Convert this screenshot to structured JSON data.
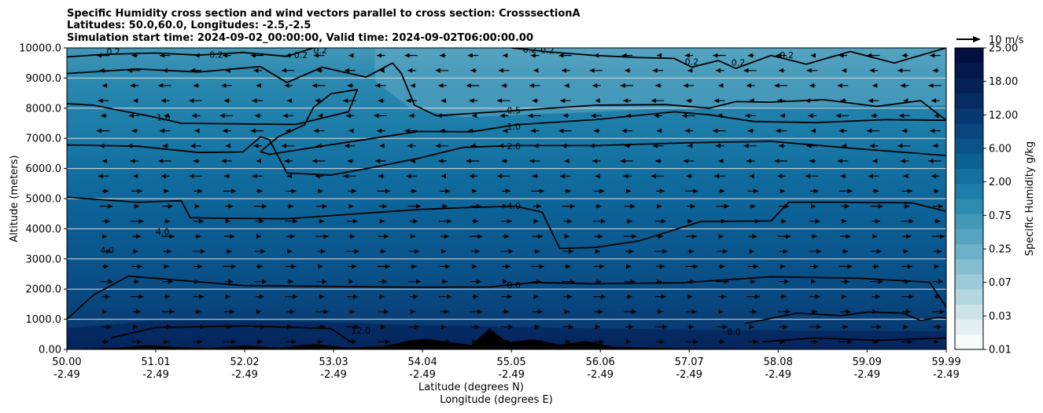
{
  "chart_data": {
    "type": "heatmap",
    "title_lines": [
      "Specific Humidity cross section and wind vectors parallel to cross section: CrosssectionA",
      "Latitudes: 50.0,60.0, Longitudes: -2.5,-2.5",
      "Simulation start time: 2024-09-02_00:00:00, Valid time: 2024-09-02T06:00:00.00"
    ],
    "xlabel_lines": [
      "Latitude (degrees N)",
      "Longitude (degrees E)"
    ],
    "ylabel": "Altitude (meters)",
    "xlim": [
      50.0,
      59.99
    ],
    "ylim": [
      0,
      10000
    ],
    "x_ticks": [
      {
        "lat": "50.00",
        "lon": "-2.49",
        "value": 50.0
      },
      {
        "lat": "51.01",
        "lon": "-2.49",
        "value": 51.01
      },
      {
        "lat": "52.02",
        "lon": "-2.49",
        "value": 52.02
      },
      {
        "lat": "53.03",
        "lon": "-2.49",
        "value": 53.03
      },
      {
        "lat": "54.04",
        "lon": "-2.49",
        "value": 54.04
      },
      {
        "lat": "55.05",
        "lon": "-2.49",
        "value": 55.05
      },
      {
        "lat": "56.06",
        "lon": "-2.49",
        "value": 56.06
      },
      {
        "lat": "57.07",
        "lon": "-2.49",
        "value": 57.07
      },
      {
        "lat": "58.08",
        "lon": "-2.49",
        "value": 58.08
      },
      {
        "lat": "59.09",
        "lon": "-2.49",
        "value": 59.09
      },
      {
        "lat": "59.99",
        "lon": "-2.49",
        "value": 59.99
      }
    ],
    "y_ticks": [
      {
        "label": "0.00",
        "value": 0
      },
      {
        "label": "1000.0",
        "value": 1000
      },
      {
        "label": "2000.0",
        "value": 2000
      },
      {
        "label": "3000.0",
        "value": 3000
      },
      {
        "label": "4000.0",
        "value": 4000
      },
      {
        "label": "5000.0",
        "value": 5000
      },
      {
        "label": "6000.0",
        "value": 6000
      },
      {
        "label": "7000.0",
        "value": 7000
      },
      {
        "label": "8000.0",
        "value": 8000
      },
      {
        "label": "9000.0",
        "value": 9000
      },
      {
        "label": "10000.0",
        "value": 10000
      }
    ],
    "grid": "horizontal",
    "colorbar": {
      "label": "Specific Humidity g/kg",
      "ticks": [
        "0.01",
        "0.03",
        "0.07",
        "0.25",
        "0.75",
        "2.00",
        "6.00",
        "12.00",
        "18.00",
        "25.00"
      ],
      "colors": [
        "#f7fbfc",
        "#e3eff3",
        "#cde3ea",
        "#b4d6e1",
        "#9ccad9",
        "#84bed1",
        "#6cb1c9",
        "#56a4c0",
        "#4398b8",
        "#2e8bb0",
        "#1d7eaa",
        "#126fa0",
        "#0b6196",
        "#09538a",
        "#08467d",
        "#073870",
        "#062b63",
        "#052057",
        "#04174c",
        "#030f40"
      ]
    },
    "quiver_key": {
      "label": "10 m/s",
      "value": 10
    },
    "contour_labels": [
      {
        "text": "0.2",
        "x": 50.45,
        "y": 9880
      },
      {
        "text": "0.2",
        "x": 51.62,
        "y": 9780
      },
      {
        "text": "0.2",
        "x": 52.58,
        "y": 9760
      },
      {
        "text": "0.2",
        "x": 52.8,
        "y": 9920
      },
      {
        "text": "0.2",
        "x": 55.18,
        "y": 9950
      },
      {
        "text": "0.2",
        "x": 55.38,
        "y": 9920
      },
      {
        "text": "0.2",
        "x": 57.02,
        "y": 9540
      },
      {
        "text": "0.2",
        "x": 57.55,
        "y": 9520
      },
      {
        "text": "0.2",
        "x": 58.1,
        "y": 9760
      },
      {
        "text": "1.0",
        "x": 51.02,
        "y": 7700
      },
      {
        "text": "0.5",
        "x": 55.0,
        "y": 7930
      },
      {
        "text": "1.0",
        "x": 55.0,
        "y": 7400
      },
      {
        "text": "2.0",
        "x": 55.0,
        "y": 6740
      },
      {
        "text": "4.0",
        "x": 55.0,
        "y": 4770
      },
      {
        "text": "4.0",
        "x": 51.01,
        "y": 3900
      },
      {
        "text": "4.0",
        "x": 50.38,
        "y": 3300
      },
      {
        "text": "8.0",
        "x": 55.0,
        "y": 2140
      },
      {
        "text": "12.0",
        "x": 53.23,
        "y": 620
      },
      {
        "text": "8.0",
        "x": 57.5,
        "y": 590
      }
    ],
    "contours": [
      {
        "level": 0.2,
        "x": [
          50.0,
          50.4,
          51.0,
          51.5,
          52.0,
          52.5,
          52.8
        ],
        "y": [
          9700,
          9780,
          9830,
          9760,
          9850,
          9720,
          10000
        ]
      },
      {
        "level": 0.2,
        "x": [
          55.05,
          55.5,
          56.0,
          56.5,
          56.9,
          57.1,
          57.4,
          57.6,
          58.0,
          58.4,
          58.9,
          59.4,
          59.99
        ],
        "y": [
          10000,
          9860,
          9750,
          9680,
          9650,
          9360,
          9580,
          9320,
          9750,
          9460,
          9880,
          9500,
          10000
        ]
      },
      {
        "level": 0.5,
        "x": [
          50.0,
          50.8,
          51.5,
          52.2,
          52.5,
          52.9,
          53.4,
          53.7,
          53.8,
          53.95,
          54.2,
          55.0,
          56.0,
          56.8,
          57.3,
          57.6,
          58.0,
          58.6,
          59.2,
          59.7,
          59.99
        ],
        "y": [
          9150,
          9300,
          9200,
          9380,
          8850,
          9360,
          9030,
          9500,
          9150,
          8100,
          7750,
          7900,
          8100,
          8120,
          8000,
          8220,
          8200,
          8280,
          8060,
          8250,
          7600
        ]
      },
      {
        "level": 1.0,
        "x": [
          50.0,
          50.3,
          51.0,
          51.3,
          52.0,
          52.6,
          53.2,
          53.3,
          53.0,
          52.8,
          52.7,
          52.4,
          52.2,
          52.3,
          53.0,
          54.0,
          54.6,
          55.1,
          56.0,
          56.9,
          57.3,
          57.8,
          58.5,
          59.3,
          59.99
        ],
        "y": [
          8150,
          8100,
          7700,
          7500,
          7480,
          7460,
          7880,
          8620,
          8480,
          8020,
          7450,
          7050,
          6560,
          6470,
          6790,
          7230,
          7220,
          7450,
          7620,
          7880,
          7780,
          7560,
          7520,
          7620,
          7600
        ]
      },
      {
        "level": 2.0,
        "x": [
          50.0,
          50.8,
          51.5,
          52.0,
          52.2,
          52.3,
          52.5,
          53.0,
          53.5,
          54.0,
          54.5,
          55.1,
          56.0,
          57.0,
          58.0,
          59.0,
          59.99
        ],
        "y": [
          6780,
          6740,
          6530,
          6550,
          7050,
          6960,
          5850,
          5780,
          6050,
          6340,
          6700,
          6760,
          6760,
          6850,
          6900,
          6650,
          6430
        ]
      },
      {
        "level": 4.0,
        "x": [
          50.0,
          50.8,
          51.3,
          51.4,
          51.8,
          52.5,
          53.2,
          54.0,
          54.5,
          55.1,
          55.4,
          55.6,
          56.0,
          56.5,
          57.2,
          58.0,
          58.2,
          58.8,
          59.6,
          59.99
        ],
        "y": [
          5050,
          4880,
          4930,
          4370,
          4350,
          4330,
          4480,
          4640,
          4700,
          4750,
          4550,
          3350,
          3380,
          3600,
          4240,
          4260,
          4880,
          4880,
          4860,
          4580
        ]
      },
      {
        "level": 8.0,
        "x": [
          50.0,
          50.3,
          50.7,
          51.0,
          51.5,
          52.0,
          53.0,
          54.0,
          54.8,
          55.3,
          56.0,
          57.0,
          58.0,
          59.0,
          59.8,
          59.99
        ],
        "y": [
          1000,
          1800,
          2430,
          2360,
          2240,
          2120,
          2090,
          2060,
          2070,
          2220,
          2180,
          2210,
          2410,
          2360,
          2230,
          1400
        ]
      },
      {
        "level": 8.0,
        "x": [
          57.7,
          58.3,
          58.8,
          59.1,
          59.5,
          59.7,
          59.9,
          59.99
        ],
        "y": [
          860,
          1200,
          1120,
          1240,
          1200,
          960,
          1060,
          1040
        ]
      },
      {
        "level": 12.0,
        "x": [
          50.5,
          51.0,
          52.0,
          53.0,
          53.25
        ],
        "y": [
          380,
          720,
          780,
          690,
          200
        ]
      },
      {
        "level": 8.0,
        "x": [
          57.9,
          58.5,
          59.2,
          59.99
        ],
        "y": [
          250,
          380,
          300,
          380
        ]
      }
    ],
    "terrain": {
      "x": [
        50.0,
        50.6,
        50.9,
        51.2,
        51.6,
        52.0,
        52.4,
        52.8,
        53.2,
        53.6,
        53.9,
        54.1,
        54.3,
        54.6,
        54.8,
        55.0,
        55.3,
        55.6,
        55.9,
        56.2,
        56.6,
        57.0,
        57.5,
        58.0,
        58.5,
        59.0,
        59.99
      ],
      "y": [
        0,
        60,
        140,
        90,
        40,
        130,
        60,
        180,
        60,
        110,
        300,
        350,
        260,
        150,
        700,
        240,
        330,
        160,
        280,
        90,
        60,
        30,
        20,
        20,
        10,
        10,
        0
      ]
    },
    "vectors": {
      "direction_upper": "left",
      "direction_lower": "right",
      "transition_height": 5500
    }
  }
}
